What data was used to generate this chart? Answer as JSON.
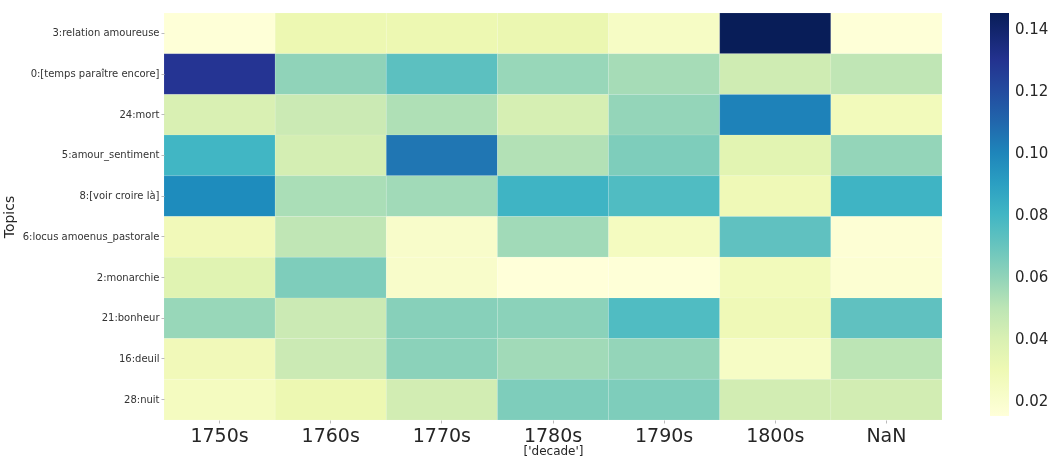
{
  "chart_data": {
    "type": "heatmap",
    "xlabel": "['decade']",
    "ylabel": "Topics",
    "categories": [
      "1750s",
      "1760s",
      "1770s",
      "1780s",
      "1790s",
      "1800s",
      "NaN"
    ],
    "y_categories": [
      "3:relation amoureuse",
      "0:[temps paraître encore]",
      "24:mort",
      "5:amour_sentiment",
      "8:[voir croire là]",
      "6:locus amoenus_pastorale",
      "2:monarchie",
      "21:bonheur",
      "16:deuil",
      "28:nuit"
    ],
    "cells": [
      [
        0.016,
        0.031,
        0.031,
        0.032,
        0.023,
        0.145,
        0.016
      ],
      [
        0.129,
        0.06,
        0.073,
        0.058,
        0.055,
        0.044,
        0.049
      ],
      [
        0.04,
        0.046,
        0.053,
        0.041,
        0.059,
        0.101,
        0.027
      ],
      [
        0.08,
        0.042,
        0.105,
        0.052,
        0.064,
        0.036,
        0.059
      ],
      [
        0.098,
        0.054,
        0.056,
        0.081,
        0.076,
        0.029,
        0.081
      ],
      [
        0.028,
        0.049,
        0.021,
        0.056,
        0.025,
        0.072,
        0.017
      ],
      [
        0.037,
        0.064,
        0.021,
        0.015,
        0.016,
        0.027,
        0.018
      ],
      [
        0.058,
        0.046,
        0.062,
        0.061,
        0.076,
        0.029,
        0.072
      ],
      [
        0.028,
        0.046,
        0.061,
        0.056,
        0.059,
        0.023,
        0.05
      ],
      [
        0.025,
        0.031,
        0.043,
        0.064,
        0.064,
        0.043,
        0.043
      ]
    ],
    "clim": [
      0.015,
      0.145
    ],
    "cticks": [
      0.02,
      0.04,
      0.06,
      0.08,
      {
        "value": 0.1,
        "label": "0.10"
      },
      0.12,
      0.14
    ]
  }
}
